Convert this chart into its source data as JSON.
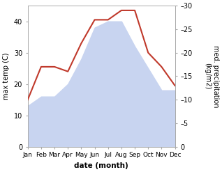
{
  "months": [
    "Jan",
    "Feb",
    "Mar",
    "Apr",
    "May",
    "Jun",
    "Jul",
    "Aug",
    "Sep",
    "Oct",
    "Nov",
    "Dec"
  ],
  "max_temp": [
    13,
    16,
    16,
    20,
    28,
    38,
    40,
    40,
    32,
    25,
    18,
    18
  ],
  "precipitation": [
    10,
    17,
    17,
    16,
    22,
    27,
    27,
    29,
    29,
    20,
    17,
    13
  ],
  "temp_fill_color": "#c8d4f0",
  "precip_color": "#c0392b",
  "ylabel_left": "max temp (C)",
  "ylabel_right": "med. precipitation\n(kg/m2)",
  "xlabel": "date (month)",
  "ylim_left": [
    0,
    45
  ],
  "ylim_right": [
    0,
    30
  ],
  "yticks_left": [
    0,
    10,
    20,
    30,
    40
  ],
  "yticks_right": [
    0,
    5,
    10,
    15,
    20,
    25,
    30
  ],
  "background_color": "#ffffff"
}
